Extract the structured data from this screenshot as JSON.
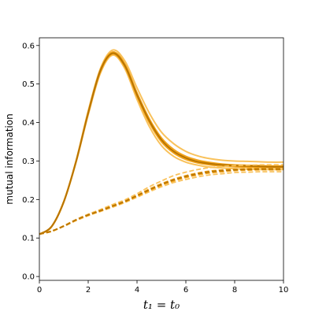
{
  "chart_data": {
    "type": "line",
    "xlabel": "t₁ = t₀",
    "ylabel": "mutual information",
    "xlim": [
      0,
      10
    ],
    "ylim": [
      -0.01,
      0.62
    ],
    "xticks": [
      "0",
      "2",
      "4",
      "6",
      "8",
      "10"
    ],
    "yticks": [
      "0.0",
      "0.1",
      "0.2",
      "0.3",
      "0.4",
      "0.5",
      "0.6"
    ],
    "grid": false,
    "legend": "none",
    "colors": {
      "light": "#f9c25c",
      "mid": "#f2a31a",
      "dark": "#b87400"
    },
    "series": [
      {
        "style": "solid",
        "color": "light",
        "x": [
          0,
          0.5,
          1,
          1.5,
          2,
          2.5,
          3,
          3.5,
          4,
          4.5,
          5,
          5.5,
          6,
          6.5,
          7,
          7.5,
          8,
          8.5,
          9,
          9.5,
          10
        ],
        "y": [
          0.11,
          0.13,
          0.195,
          0.3,
          0.43,
          0.54,
          0.588,
          0.56,
          0.49,
          0.425,
          0.375,
          0.345,
          0.325,
          0.313,
          0.306,
          0.302,
          0.3,
          0.299,
          0.298,
          0.297,
          0.297
        ]
      },
      {
        "style": "solid",
        "color": "light",
        "x": [
          0,
          0.5,
          1,
          1.5,
          2,
          2.5,
          3,
          3.5,
          4,
          4.5,
          5,
          5.5,
          6,
          6.5,
          7,
          7.5,
          8,
          8.5,
          9,
          9.5,
          10
        ],
        "y": [
          0.11,
          0.129,
          0.193,
          0.296,
          0.42,
          0.528,
          0.575,
          0.54,
          0.46,
          0.39,
          0.34,
          0.312,
          0.297,
          0.289,
          0.284,
          0.282,
          0.28,
          0.279,
          0.278,
          0.278,
          0.278
        ]
      },
      {
        "style": "solid",
        "color": "mid",
        "x": [
          0,
          0.5,
          1,
          1.5,
          2,
          2.5,
          3,
          3.5,
          4,
          4.5,
          5,
          5.5,
          6,
          6.5,
          7,
          7.5,
          8,
          8.5,
          9,
          9.5,
          10
        ],
        "y": [
          0.11,
          0.13,
          0.195,
          0.299,
          0.427,
          0.537,
          0.583,
          0.552,
          0.477,
          0.41,
          0.36,
          0.33,
          0.312,
          0.302,
          0.296,
          0.292,
          0.29,
          0.289,
          0.288,
          0.287,
          0.287
        ]
      },
      {
        "style": "solid",
        "color": "mid",
        "x": [
          0,
          0.5,
          1,
          1.5,
          2,
          2.5,
          3,
          3.5,
          4,
          4.5,
          5,
          5.5,
          6,
          6.5,
          7,
          7.5,
          8,
          8.5,
          9,
          9.5,
          10
        ],
        "y": [
          0.11,
          0.129,
          0.194,
          0.297,
          0.423,
          0.532,
          0.578,
          0.545,
          0.468,
          0.4,
          0.35,
          0.321,
          0.304,
          0.295,
          0.29,
          0.287,
          0.285,
          0.284,
          0.283,
          0.283,
          0.283
        ]
      },
      {
        "style": "solid",
        "color": "dark",
        "x": [
          0,
          0.5,
          1,
          1.5,
          2,
          2.5,
          3,
          3.5,
          4,
          4.5,
          5,
          5.5,
          6,
          6.5,
          7,
          7.5,
          8,
          8.5,
          9,
          9.5,
          10
        ],
        "y": [
          0.11,
          0.13,
          0.194,
          0.298,
          0.425,
          0.535,
          0.58,
          0.548,
          0.472,
          0.405,
          0.355,
          0.325,
          0.308,
          0.298,
          0.293,
          0.29,
          0.288,
          0.287,
          0.286,
          0.285,
          0.285
        ]
      },
      {
        "style": "dashed",
        "color": "light",
        "x": [
          0,
          0.5,
          1,
          1.5,
          2,
          2.5,
          3,
          3.5,
          4,
          4.5,
          5,
          5.5,
          6,
          6.5,
          7,
          7.5,
          8,
          8.5,
          9,
          9.5,
          10
        ],
        "y": [
          0.11,
          0.118,
          0.132,
          0.148,
          0.162,
          0.174,
          0.187,
          0.199,
          0.215,
          0.233,
          0.248,
          0.262,
          0.271,
          0.278,
          0.283,
          0.286,
          0.288,
          0.289,
          0.29,
          0.29,
          0.29
        ]
      },
      {
        "style": "dashed",
        "color": "light",
        "x": [
          0,
          0.5,
          1,
          1.5,
          2,
          2.5,
          3,
          3.5,
          4,
          4.5,
          5,
          5.5,
          6,
          6.5,
          7,
          7.5,
          8,
          8.5,
          9,
          9.5,
          10
        ],
        "y": [
          0.11,
          0.117,
          0.13,
          0.145,
          0.158,
          0.169,
          0.18,
          0.192,
          0.206,
          0.22,
          0.233,
          0.244,
          0.252,
          0.259,
          0.264,
          0.267,
          0.27,
          0.271,
          0.272,
          0.272,
          0.272
        ]
      },
      {
        "style": "dashed",
        "color": "mid",
        "x": [
          0,
          0.5,
          1,
          1.5,
          2,
          2.5,
          3,
          3.5,
          4,
          4.5,
          5,
          5.5,
          6,
          6.5,
          7,
          7.5,
          8,
          8.5,
          9,
          9.5,
          10
        ],
        "y": [
          0.11,
          0.118,
          0.131,
          0.147,
          0.16,
          0.172,
          0.184,
          0.196,
          0.211,
          0.227,
          0.241,
          0.253,
          0.262,
          0.269,
          0.274,
          0.277,
          0.279,
          0.28,
          0.281,
          0.281,
          0.281
        ]
      },
      {
        "style": "dashed",
        "color": "mid",
        "x": [
          0,
          0.5,
          1,
          1.5,
          2,
          2.5,
          3,
          3.5,
          4,
          4.5,
          5,
          5.5,
          6,
          6.5,
          7,
          7.5,
          8,
          8.5,
          9,
          9.5,
          10
        ],
        "y": [
          0.11,
          0.117,
          0.131,
          0.146,
          0.159,
          0.17,
          0.182,
          0.194,
          0.208,
          0.223,
          0.237,
          0.248,
          0.257,
          0.264,
          0.269,
          0.272,
          0.275,
          0.276,
          0.277,
          0.277,
          0.277
        ]
      },
      {
        "style": "dashed",
        "color": "dark",
        "x": [
          0,
          0.5,
          1,
          1.5,
          2,
          2.5,
          3,
          3.5,
          4,
          4.5,
          5,
          5.5,
          6,
          6.5,
          7,
          7.5,
          8,
          8.5,
          9,
          9.5,
          10
        ],
        "y": [
          0.11,
          0.118,
          0.131,
          0.147,
          0.16,
          0.171,
          0.183,
          0.195,
          0.21,
          0.225,
          0.239,
          0.251,
          0.26,
          0.267,
          0.272,
          0.275,
          0.277,
          0.278,
          0.279,
          0.279,
          0.279
        ]
      }
    ]
  }
}
